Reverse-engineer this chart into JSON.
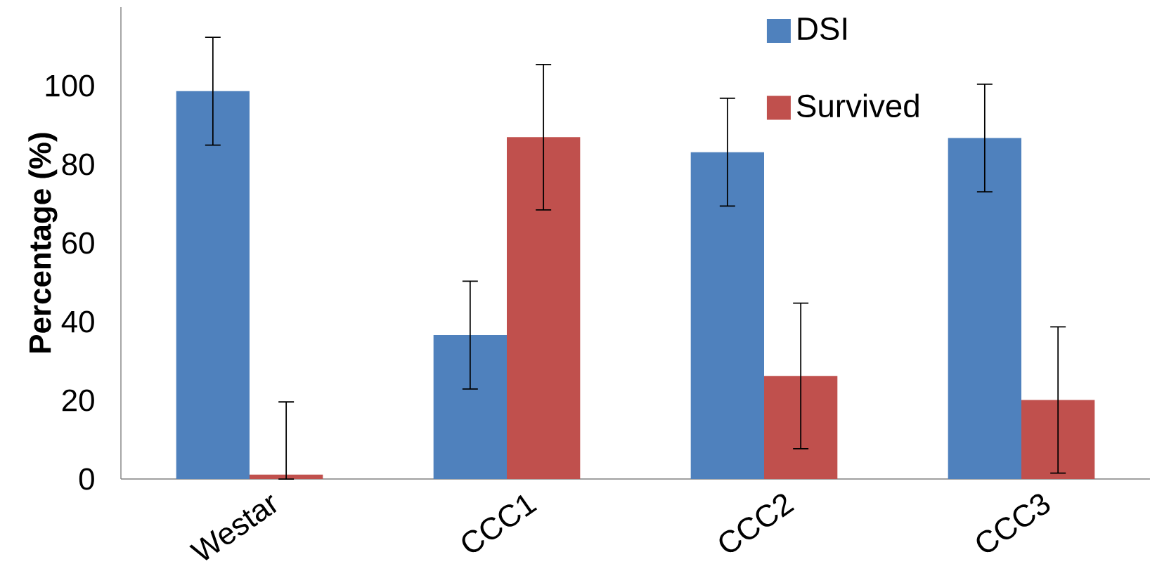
{
  "chart_data": {
    "type": "bar",
    "ylabel": "Percentage (%)",
    "categories": [
      "Westar",
      "CCC1",
      "CCC2",
      "CCC3"
    ],
    "series": [
      {
        "name": "DSI",
        "color": "#4f81bd",
        "values": [
          98.6,
          36.6,
          83.1,
          86.7
        ],
        "errors": [
          13.7,
          13.7,
          13.7,
          13.7
        ]
      },
      {
        "name": "Survived",
        "color": "#c0504d",
        "values": [
          1.1,
          86.9,
          26.2,
          20.1
        ],
        "errors": [
          [
            0,
            19.6
          ],
          18.5,
          18.5,
          18.6
        ]
      }
    ],
    "ylim": [
      0,
      120
    ],
    "yticks": [
      0,
      20,
      40,
      60,
      80,
      100
    ],
    "legend": "top right",
    "grid": false
  }
}
